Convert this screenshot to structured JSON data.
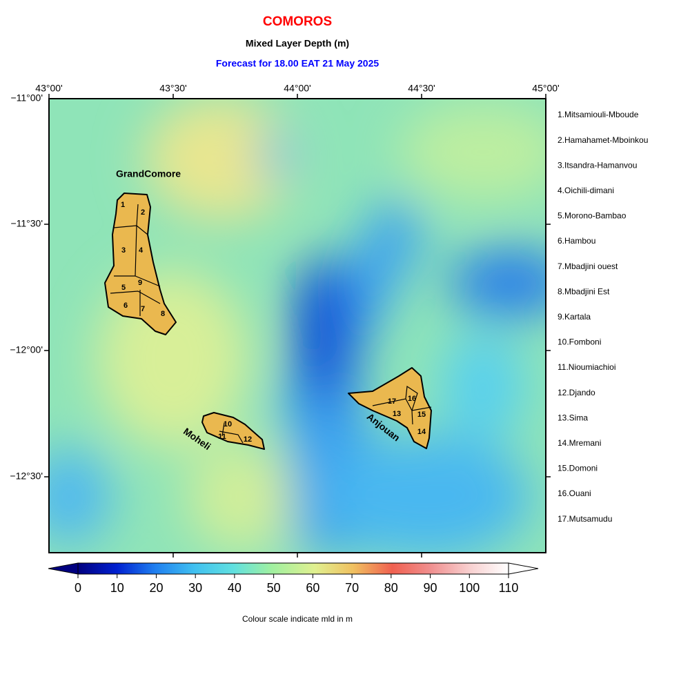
{
  "header": {
    "title": "COMOROS",
    "subtitle": "Mixed Layer Depth (m)",
    "forecast": "Forecast for  18.00 EAT 21 May 2025"
  },
  "lon_labels": [
    "43°00'",
    "43°30'",
    "44°00'",
    "44°30'",
    "45°00'"
  ],
  "lat_labels": [
    "−11°00'",
    "−11°30'",
    "−12°00'",
    "−12°30'"
  ],
  "islands": [
    "GrandComore",
    "Moheli",
    "Anjouan"
  ],
  "region_labels": [
    "1",
    "2",
    "3",
    "4",
    "5",
    "6",
    "7",
    "8",
    "9",
    "10",
    "11",
    "12",
    "13",
    "14",
    "15",
    "16",
    "17"
  ],
  "regions": [
    "1.Mitsamiouli-Mboude",
    "2.Hamahamet-Mboinkou",
    "3.Itsandra-Hamanvou",
    "4.Oichili-dimani",
    "5.Morono-Bambao",
    "6.Hambou",
    "7.Mbadjini ouest",
    "8.Mbadjini Est",
    "9.Kartala",
    "10.Fomboni",
    "11.Nioumiachioi",
    "12.Djando",
    "13.Sima",
    "14.Mremani",
    "15.Domoni",
    "16.Ouani",
    "17.Mutsamudu"
  ],
  "colorbar": {
    "lim": [
      0,
      110
    ],
    "ticks": [
      0,
      10,
      20,
      30,
      40,
      50,
      60,
      70,
      80,
      90,
      100,
      110
    ],
    "caption": "Colour scale indicate mld in m"
  }
}
